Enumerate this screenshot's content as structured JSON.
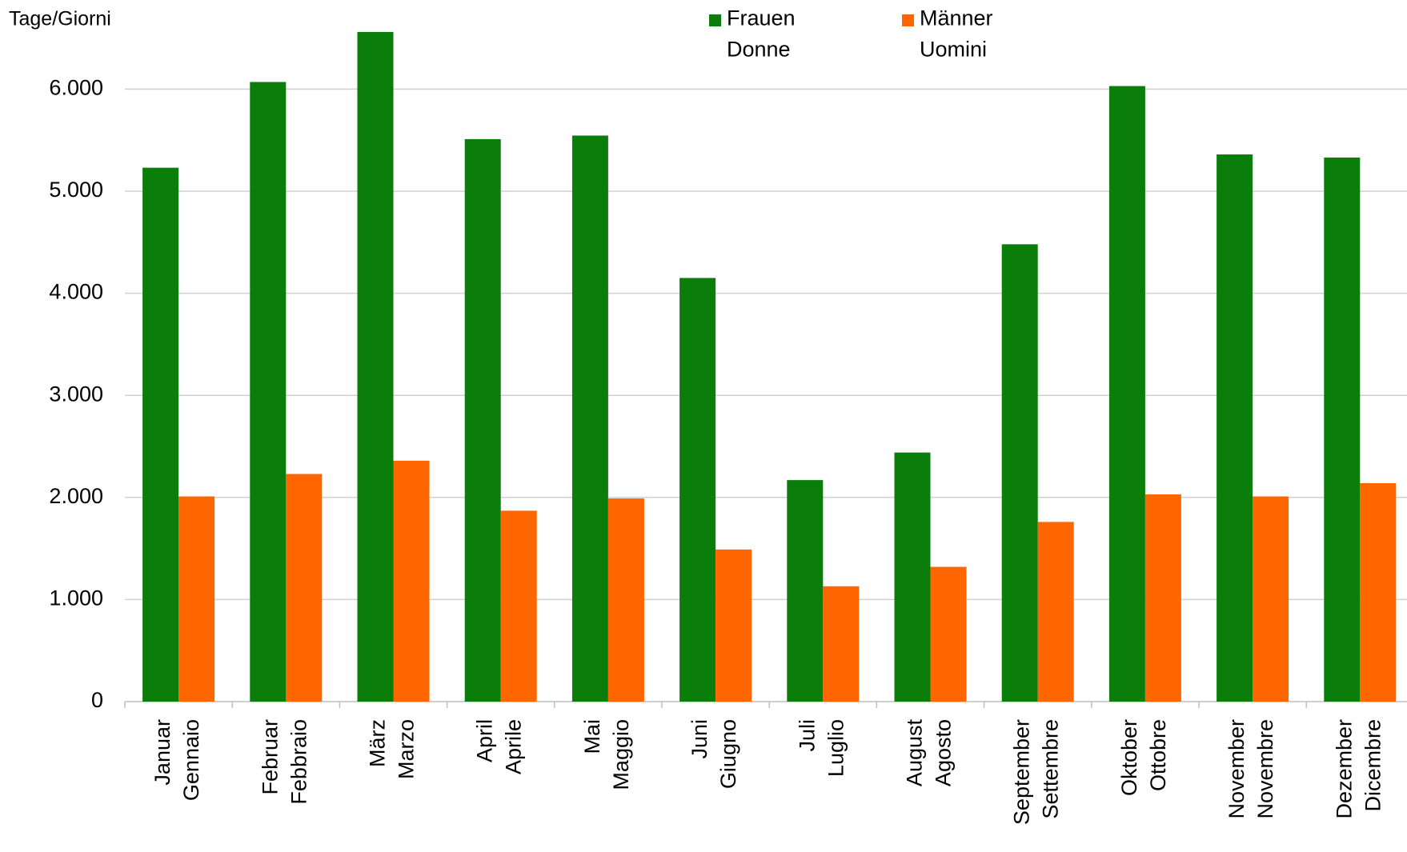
{
  "chart_data": {
    "type": "bar",
    "y_label": "Tage/Giorni",
    "categories": [
      "Januar\nGennaio",
      "Februar\nFebbraio",
      "März\nMarzo",
      "April\nAprile",
      "Mai\nMaggio",
      "Juni\nGiugno",
      "Juli\nLuglio",
      "August\nAgosto",
      "September\nSettembre",
      "Oktober\nOttobre",
      "November\nNovembre",
      "Dezember\nDicembre"
    ],
    "series": [
      {
        "name": "Frauen\nDonne",
        "color": "#0a7d0a",
        "values": [
          5230,
          6070,
          6560,
          5510,
          5545,
          4150,
          2170,
          2440,
          4480,
          6030,
          5360,
          5330
        ]
      },
      {
        "name": "Männer\nUomini",
        "color": "#ff6600",
        "values": [
          2010,
          2230,
          2360,
          1870,
          1990,
          1490,
          1130,
          1320,
          1760,
          2030,
          2010,
          2140
        ]
      }
    ],
    "ylim": [
      0,
      7000
    ],
    "yticks": [
      0,
      {
        "value": 1000,
        "label": "1.000"
      },
      {
        "value": 2000,
        "label": "2.000"
      },
      {
        "value": 3000,
        "label": "3.000"
      },
      {
        "value": 4000,
        "label": "4.000"
      },
      {
        "value": 5000,
        "label": "5.000"
      },
      {
        "value": 6000,
        "label": "6.000"
      }
    ],
    "grid": true
  }
}
